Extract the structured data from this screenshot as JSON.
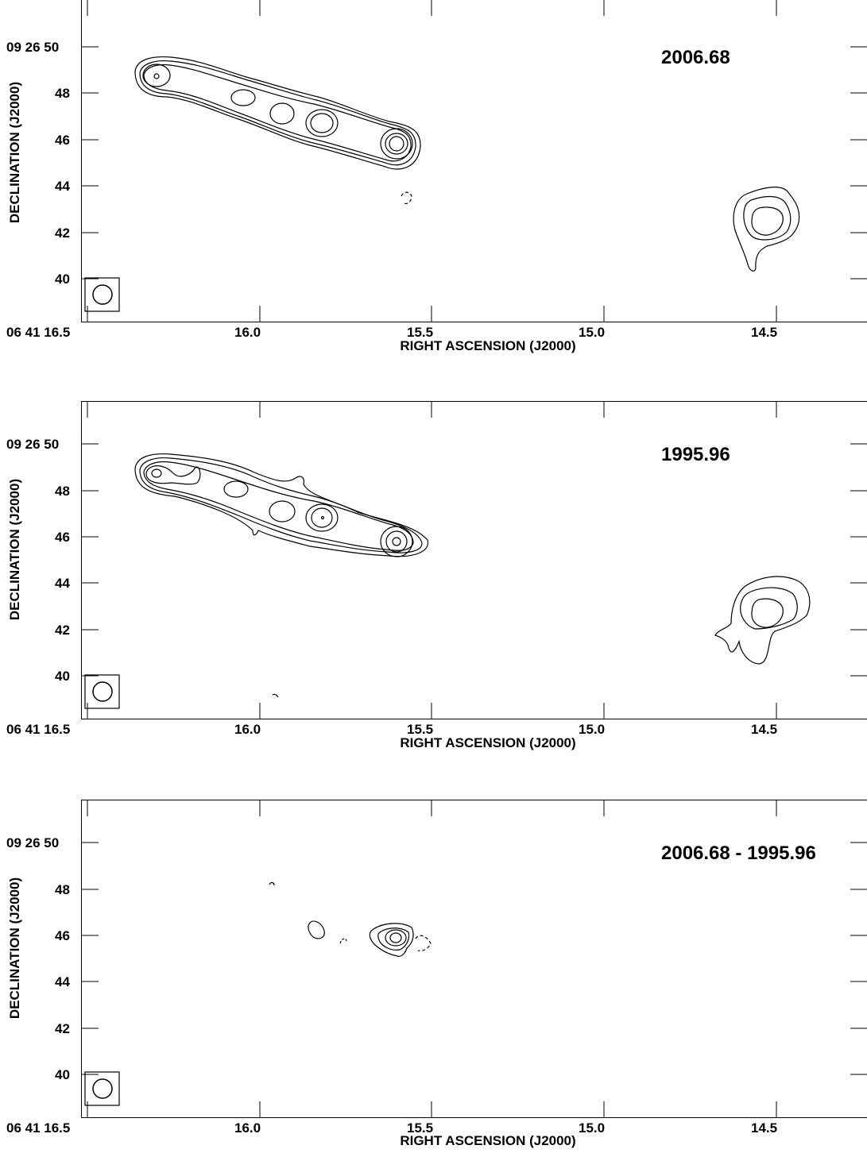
{
  "panels": [
    {
      "epoch_label": "2006.68",
      "y_ticks": [
        "09 26 50",
        "48",
        "46",
        "44",
        "42",
        "40"
      ],
      "x_ticks": [
        "06 41 16.5",
        "16.0",
        "15.5",
        "15.0",
        "14.5"
      ],
      "x_title": "RIGHT ASCENSION (J2000)",
      "y_title": "DECLINATION (J2000)"
    },
    {
      "epoch_label": "1995.96",
      "y_ticks": [
        "09 26 50",
        "48",
        "46",
        "44",
        "42",
        "40"
      ],
      "x_ticks": [
        "06 41 16.5",
        "16.0",
        "15.5",
        "15.0",
        "14.5"
      ],
      "x_title": "RIGHT ASCENSION (J2000)",
      "y_title": "DECLINATION (J2000)"
    },
    {
      "epoch_label": "2006.68 - 1995.96",
      "y_ticks": [
        "09 26 50",
        "48",
        "46",
        "44",
        "42",
        "40"
      ],
      "x_ticks": [
        "06 41 16.5",
        "16.0",
        "15.5",
        "15.0",
        "14.5"
      ],
      "x_title": "RIGHT ASCENSION (J2000)",
      "y_title": "DECLINATION (J2000)"
    }
  ]
}
